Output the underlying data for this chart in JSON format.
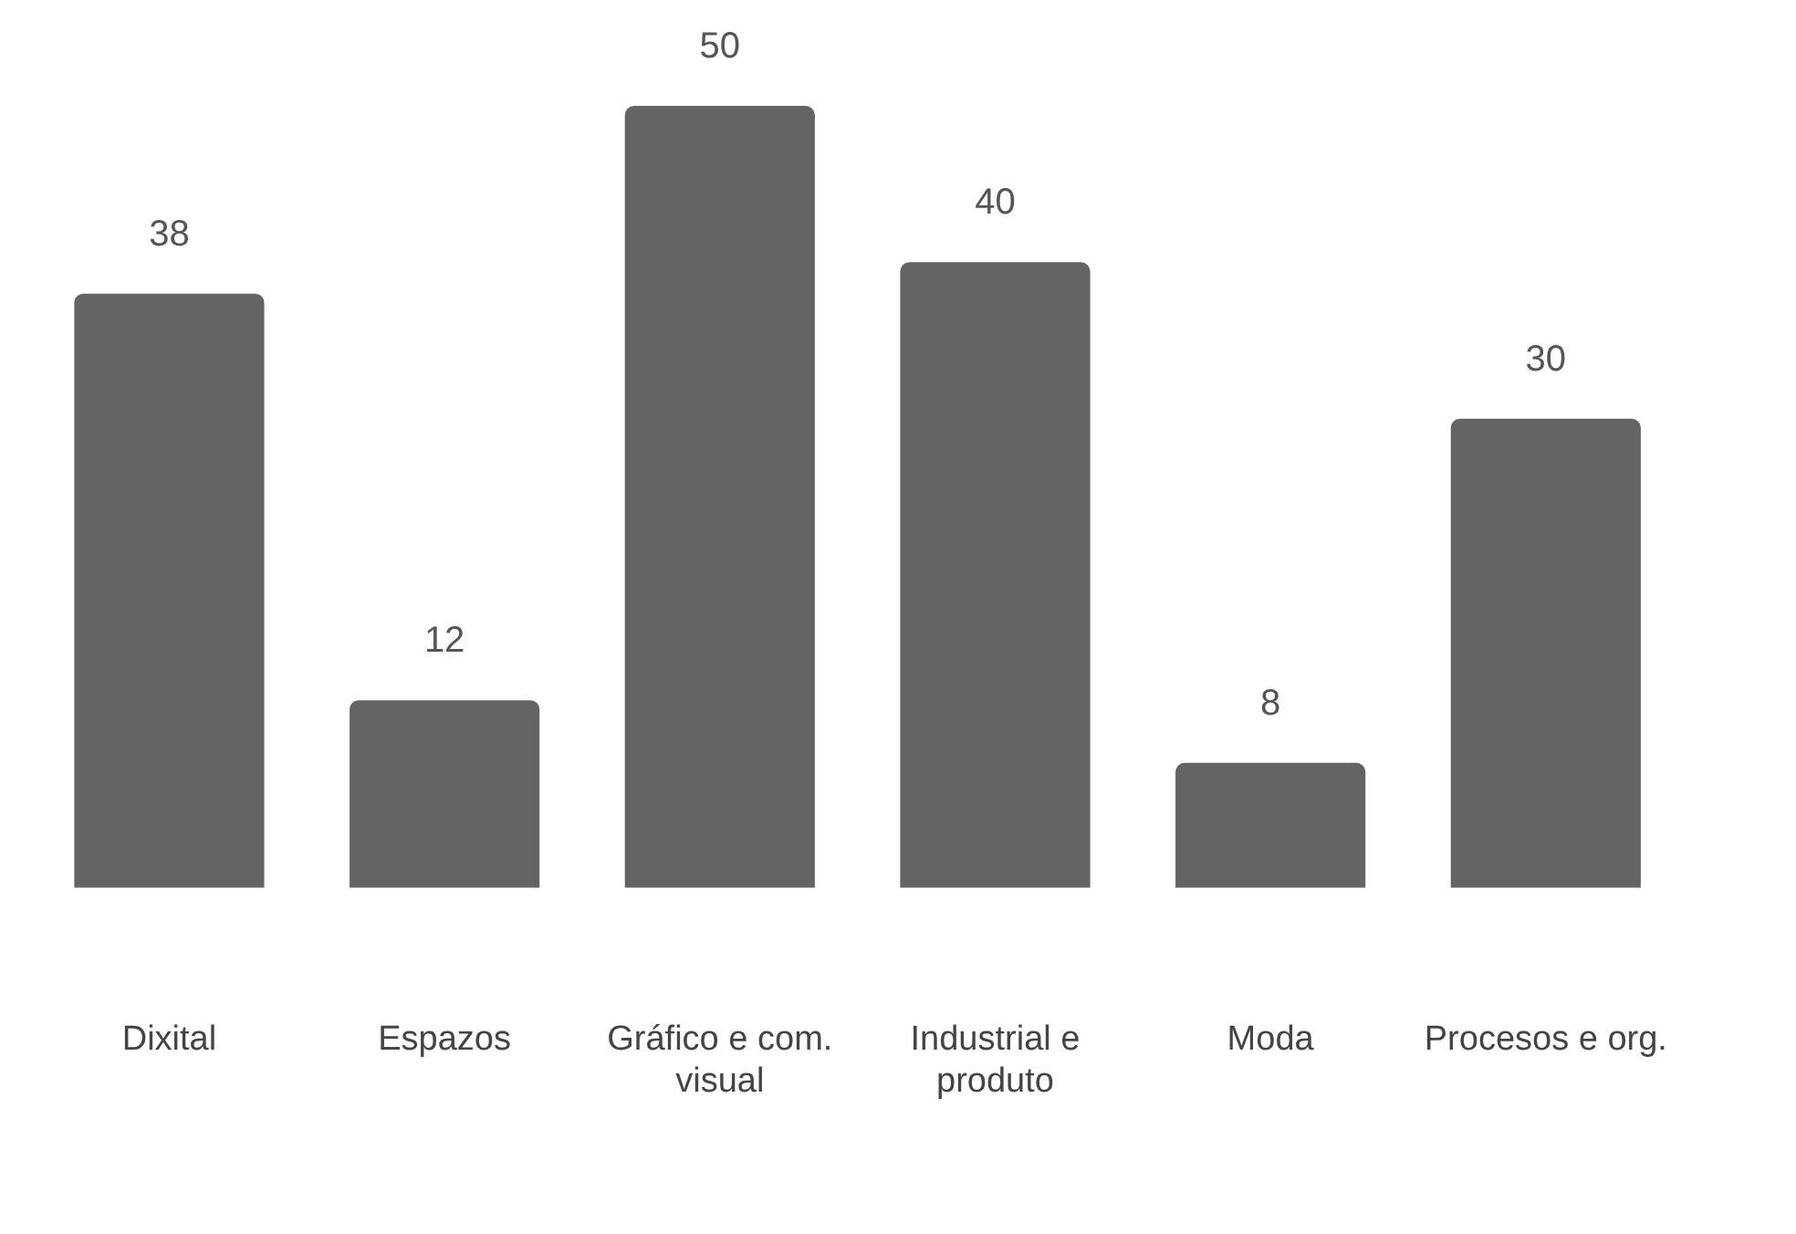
{
  "chart_data": {
    "type": "bar",
    "categories": [
      "Dixital",
      "Espazos",
      "Gráfico e com. visual",
      "Industrial e produto",
      "Moda",
      "Procesos e org."
    ],
    "values": [
      38,
      12,
      50,
      40,
      8,
      30
    ],
    "color": "#646464",
    "data_labels": true,
    "grid": false,
    "legend": false
  }
}
